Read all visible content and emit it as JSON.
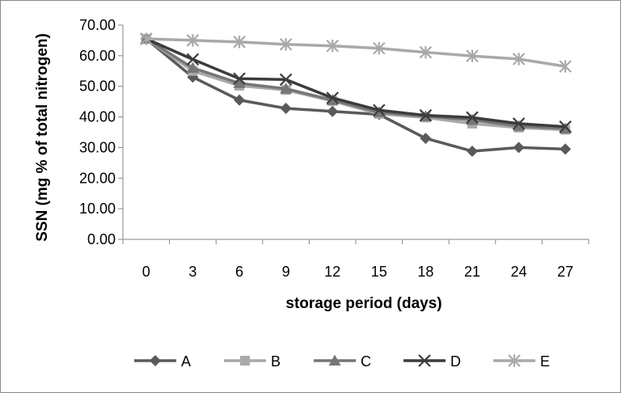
{
  "chart_data": {
    "type": "line",
    "title": "",
    "xlabel": "storage period (days)",
    "ylabel": "SSN (mg % of total nitrogen)",
    "x": [
      0,
      3,
      6,
      9,
      12,
      15,
      18,
      21,
      24,
      27
    ],
    "x_tick_labels": [
      "0",
      "3",
      "6",
      "9",
      "12",
      "15",
      "18",
      "21",
      "24",
      "27"
    ],
    "ylim": [
      0,
      70
    ],
    "y_ticks": [
      0,
      10,
      20,
      30,
      40,
      50,
      60,
      70
    ],
    "y_tick_labels": [
      "0.00",
      "10.00",
      "20.00",
      "30.00",
      "40.00",
      "50.00",
      "60.00",
      "70.00"
    ],
    "grid": false,
    "legend_position": "bottom",
    "series": [
      {
        "name": "A",
        "marker": "diamond",
        "color": "#5a5a5a",
        "values": [
          65.5,
          53.0,
          45.5,
          42.8,
          41.8,
          40.8,
          33.0,
          28.8,
          30.0,
          29.5
        ]
      },
      {
        "name": "B",
        "marker": "square",
        "color": "#a9a9a9",
        "values": [
          65.5,
          55.0,
          50.2,
          48.8,
          45.2,
          41.0,
          39.8,
          37.8,
          36.5,
          35.8
        ]
      },
      {
        "name": "C",
        "marker": "triangle",
        "color": "#767676",
        "values": [
          65.5,
          56.0,
          51.0,
          49.2,
          45.5,
          41.5,
          40.2,
          39.0,
          37.0,
          36.2
        ]
      },
      {
        "name": "D",
        "marker": "x",
        "color": "#3c3c3c",
        "values": [
          65.5,
          58.8,
          52.5,
          52.2,
          46.2,
          42.2,
          40.5,
          39.8,
          37.8,
          36.8
        ]
      },
      {
        "name": "E",
        "marker": "star",
        "color": "#a9a9a9",
        "values": [
          65.5,
          65.0,
          64.5,
          63.7,
          63.2,
          62.4,
          61.1,
          59.9,
          58.9,
          56.5
        ]
      }
    ]
  }
}
